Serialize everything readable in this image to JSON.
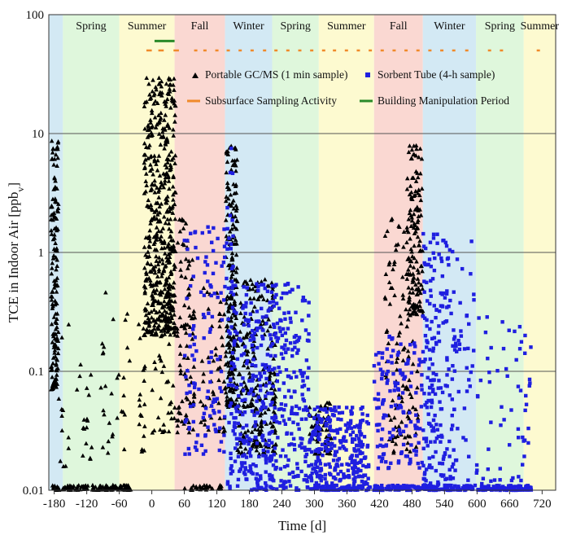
{
  "chart_data": {
    "type": "scatter",
    "yscale": "log",
    "xlim": [
      -190,
      745
    ],
    "ylim": [
      0.01,
      100
    ],
    "xlabel": "Time [d]",
    "ylabel": "TCE in Indoor Air [ppbv]",
    "ylabel_main": "TCE in Indoor Air [ppb",
    "ylabel_sub": "v",
    "ylabel_close": "]",
    "x_ticks": [
      -180,
      -120,
      -60,
      0,
      60,
      120,
      180,
      240,
      300,
      360,
      420,
      480,
      540,
      600,
      660,
      720
    ],
    "x_tick_labels": [
      "-180",
      "-120",
      "-60",
      "0",
      "60",
      "120",
      "180",
      "240",
      "300",
      "360",
      "420",
      "480",
      "540",
      "600",
      "660",
      "720"
    ],
    "y_ticks": [
      0.01,
      0.1,
      1,
      10,
      100
    ],
    "y_tick_labels": [
      "0.01",
      "0.1",
      "1",
      "10",
      "100"
    ],
    "grid": "horizontal at decades",
    "colors": {
      "Spring": "#dff7dc",
      "Summer": "#fdfad0",
      "Fall": "#fad8d2",
      "Winter": "#d3e9f4",
      "Pre": "#d3e9f4",
      "gc_ms": "#000000",
      "sorbent": "#1f1fe0",
      "subsurface": "#f08a2a",
      "manipulation": "#2a8a2a"
    },
    "seasons": [
      {
        "label": "",
        "type": "Pre",
        "start": -190,
        "end": -164
      },
      {
        "label": "Spring",
        "type": "Spring",
        "start": -164,
        "end": -60
      },
      {
        "label": "Summer",
        "type": "Summer",
        "start": -60,
        "end": 42
      },
      {
        "label": "Fall",
        "type": "Fall",
        "start": 42,
        "end": 135
      },
      {
        "label": "Winter",
        "type": "Winter",
        "start": 135,
        "end": 222
      },
      {
        "label": "Spring",
        "type": "Spring",
        "start": 222,
        "end": 308
      },
      {
        "label": "Summer",
        "type": "Summer",
        "start": 308,
        "end": 410
      },
      {
        "label": "Fall",
        "type": "Fall",
        "start": 410,
        "end": 500
      },
      {
        "label": "Winter",
        "type": "Winter",
        "start": 500,
        "end": 598
      },
      {
        "label": "Spring",
        "type": "Spring",
        "start": 598,
        "end": 686
      },
      {
        "label": "Summer",
        "type": "Summer",
        "start": 686,
        "end": 745
      }
    ],
    "legend": {
      "placement": "top",
      "items": [
        {
          "label": "Portable GC/MS (1 min sample)",
          "marker": "triangle",
          "color_key": "gc_ms"
        },
        {
          "label": "Sorbent Tube (4-h sample)",
          "marker": "square",
          "color_key": "sorbent"
        },
        {
          "label": "Subsurface Sampling Activity",
          "marker": "line",
          "color_key": "subsurface"
        },
        {
          "label": "Building Manipulation Period",
          "marker": "line",
          "color_key": "manipulation"
        }
      ]
    },
    "subsurface_sampling_activity": {
      "y": 50,
      "segments": [
        [
          -10,
          0
        ],
        [
          12,
          22
        ],
        [
          40,
          50
        ],
        [
          78,
          84
        ],
        [
          95,
          101
        ],
        [
          117,
          123
        ],
        [
          138,
          144
        ],
        [
          160,
          166
        ],
        [
          182,
          188
        ],
        [
          205,
          211
        ],
        [
          226,
          232
        ],
        [
          248,
          254
        ],
        [
          270,
          276
        ],
        [
          292,
          298
        ],
        [
          314,
          320
        ],
        [
          334,
          340
        ],
        [
          356,
          362
        ],
        [
          378,
          384
        ],
        [
          400,
          406
        ],
        [
          422,
          428
        ],
        [
          444,
          450
        ],
        [
          466,
          472
        ],
        [
          488,
          494
        ],
        [
          510,
          516
        ],
        [
          532,
          538
        ],
        [
          554,
          560
        ],
        [
          578,
          584
        ],
        [
          620,
          626
        ],
        [
          642,
          648
        ],
        [
          710,
          716
        ]
      ]
    },
    "building_manipulation_period": {
      "y": 60,
      "start": 5,
      "end": 42
    },
    "series": [
      {
        "name": "Portable GC/MS (1 min sample)",
        "marker": "triangle",
        "clusters": [
          {
            "x": [
              -186,
              -172
            ],
            "y": [
              0.07,
              9
            ],
            "n": 150
          },
          {
            "x": [
              -184,
              -170
            ],
            "y": [
              0.01,
              0.011
            ],
            "n": 14
          },
          {
            "x": [
              -175,
              -150
            ],
            "y": [
              0.015,
              0.3
            ],
            "n": 12
          },
          {
            "x": [
              -165,
              -38
            ],
            "y": [
              0.01,
              0.011
            ],
            "n": 120
          },
          {
            "x": [
              -140,
              -110
            ],
            "y": [
              0.018,
              0.12
            ],
            "n": 18
          },
          {
            "x": [
              -95,
              -40
            ],
            "y": [
              0.02,
              0.5
            ],
            "n": 30
          },
          {
            "x": [
              -25,
              -12
            ],
            "y": [
              0.02,
              0.3
            ],
            "n": 20
          },
          {
            "x": [
              -14,
              44
            ],
            "y": [
              0.2,
              30
            ],
            "n": 500
          },
          {
            "x": [
              0,
              45
            ],
            "y": [
              0.03,
              0.5
            ],
            "n": 50
          },
          {
            "x": [
              46,
              80
            ],
            "y": [
              0.03,
              2.0
            ],
            "n": 90
          },
          {
            "x": [
              60,
              135
            ],
            "y": [
              0.01,
              0.011
            ],
            "n": 30
          },
          {
            "x": [
              90,
              135
            ],
            "y": [
              0.03,
              0.5
            ],
            "n": 50
          },
          {
            "x": [
              136,
              158
            ],
            "y": [
              0.05,
              8
            ],
            "n": 220
          },
          {
            "x": [
              158,
              230
            ],
            "y": [
              0.02,
              0.6
            ],
            "n": 250
          },
          {
            "x": [
              290,
              332
            ],
            "y": [
              0.02,
              0.055
            ],
            "n": 70
          },
          {
            "x": [
              430,
              492
            ],
            "y": [
              0.02,
              2.0
            ],
            "n": 120
          },
          {
            "x": [
              470,
              500
            ],
            "y": [
              0.3,
              8
            ],
            "n": 140
          }
        ]
      },
      {
        "name": "Sorbent Tube (4-h sample)",
        "marker": "square",
        "clusters": [
          {
            "x": [
              60,
              135
            ],
            "y": [
              0.02,
              2.0
            ],
            "n": 120
          },
          {
            "x": [
              136,
              150
            ],
            "y": [
              0.5,
              11
            ],
            "n": 20
          },
          {
            "x": [
              140,
              290
            ],
            "y": [
              0.01,
              0.55
            ],
            "n": 480
          },
          {
            "x": [
              290,
              400
            ],
            "y": [
              0.01,
              0.05
            ],
            "n": 300
          },
          {
            "x": [
              300,
              420
            ],
            "y": [
              0.01,
              0.011
            ],
            "n": 60
          },
          {
            "x": [
              410,
              700
            ],
            "y": [
              0.01,
              0.011
            ],
            "n": 240
          },
          {
            "x": [
              410,
              500
            ],
            "y": [
              0.015,
              0.2
            ],
            "n": 140
          },
          {
            "x": [
              500,
              560
            ],
            "y": [
              0.01,
              1.5
            ],
            "n": 220
          },
          {
            "x": [
              560,
              700
            ],
            "y": [
              0.01,
              0.3
            ],
            "n": 90
          },
          {
            "x": [
              560,
              600
            ],
            "y": [
              0.08,
              1.3
            ],
            "n": 15
          }
        ]
      }
    ]
  }
}
